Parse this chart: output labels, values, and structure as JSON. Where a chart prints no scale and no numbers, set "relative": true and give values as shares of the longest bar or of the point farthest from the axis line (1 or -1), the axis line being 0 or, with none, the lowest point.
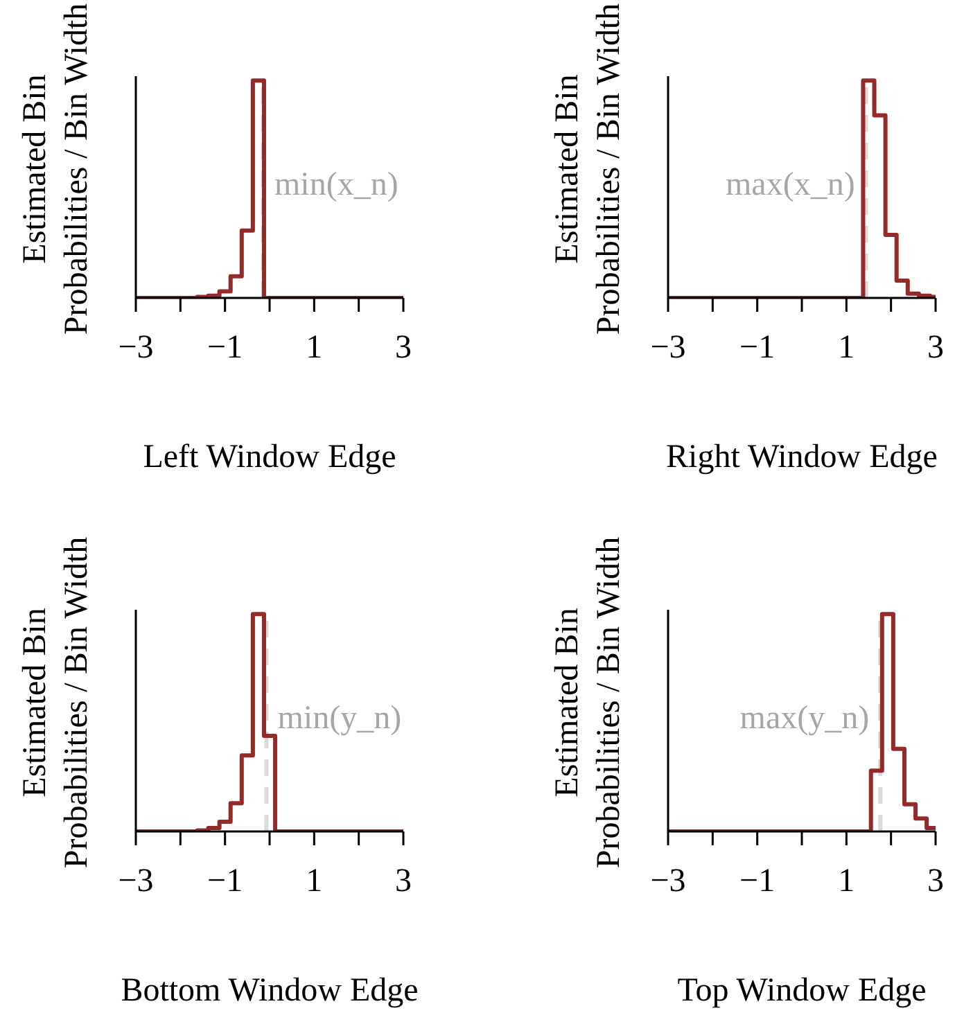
{
  "chart_data": [
    {
      "type": "step",
      "xlabel": "Left Window Edge",
      "ylabel": "Estimated Bin Probabilities / Bin Width",
      "relative": true,
      "color": "#952a2a",
      "x": [
        -3,
        -1.625,
        -1.375,
        -1.125,
        -0.875,
        -0.625,
        -0.375,
        -0.125,
        3
      ],
      "values": [
        0,
        0.005,
        0.01,
        0.03,
        0.1,
        0.31,
        1,
        0,
        0
      ],
      "xlim": [
        -3,
        3
      ],
      "xticks": [
        {
          "value": -3,
          "label": "−3"
        },
        {
          "value": -2,
          "label": null
        },
        {
          "value": -1,
          "label": "−1"
        },
        {
          "value": 0,
          "label": null
        },
        {
          "value": 1,
          "label": "1"
        },
        {
          "value": 2,
          "label": null
        },
        {
          "value": 3,
          "label": "3"
        }
      ],
      "ref_lines": [
        {
          "axis": "x",
          "value": -0.14,
          "label": "min(x_n)",
          "color": "#d9d9d9",
          "line_style": "dashed"
        }
      ]
    },
    {
      "type": "step",
      "xlabel": "Right Window Edge",
      "ylabel": "Estimated Bin Probabilities / Bin Width",
      "relative": true,
      "color": "#952a2a",
      "x": [
        -3,
        1.375,
        1.625,
        1.875,
        2.125,
        2.375,
        2.625,
        2.875,
        3
      ],
      "values": [
        0,
        1,
        0.84,
        0.29,
        0.08,
        0.02,
        0.01,
        0.005,
        0.005
      ],
      "xlim": [
        -3,
        3
      ],
      "xticks": [
        {
          "value": -3,
          "label": "−3"
        },
        {
          "value": -2,
          "label": null
        },
        {
          "value": -1,
          "label": "−1"
        },
        {
          "value": 0,
          "label": null
        },
        {
          "value": 1,
          "label": "1"
        },
        {
          "value": 2,
          "label": null
        },
        {
          "value": 3,
          "label": "3"
        }
      ],
      "ref_lines": [
        {
          "axis": "x",
          "value": 1.44,
          "label": "max(x_n)",
          "color": "#d9d9d9",
          "line_style": "dashed"
        }
      ]
    },
    {
      "type": "step",
      "xlabel": "Bottom Window Edge",
      "ylabel": "Estimated Bin Probabilities / Bin Width",
      "relative": true,
      "color": "#952a2a",
      "x": [
        -3,
        -1.625,
        -1.375,
        -1.125,
        -0.875,
        -0.625,
        -0.375,
        -0.125,
        0.125,
        3
      ],
      "values": [
        0,
        0.005,
        0.016,
        0.045,
        0.13,
        0.35,
        1,
        0.44,
        0,
        0
      ],
      "xlim": [
        -3,
        3
      ],
      "xticks": [
        {
          "value": -3,
          "label": "−3"
        },
        {
          "value": -2,
          "label": null
        },
        {
          "value": -1,
          "label": "−1"
        },
        {
          "value": 0,
          "label": null
        },
        {
          "value": 1,
          "label": "1"
        },
        {
          "value": 2,
          "label": null
        },
        {
          "value": 3,
          "label": "3"
        }
      ],
      "ref_lines": [
        {
          "axis": "x",
          "value": -0.07,
          "label": "min(y_n)",
          "color": "#d9d9d9",
          "line_style": "dashed"
        }
      ]
    },
    {
      "type": "step",
      "xlabel": "Top Window Edge",
      "ylabel": "Estimated Bin Probabilities / Bin Width",
      "relative": true,
      "color": "#952a2a",
      "x": [
        -3,
        1.55,
        1.8,
        2.05,
        2.3,
        2.55,
        2.8,
        3
      ],
      "values": [
        0,
        0.28,
        1,
        0.38,
        0.125,
        0.06,
        0.016,
        0.016
      ],
      "xlim": [
        -3,
        3
      ],
      "xticks": [
        {
          "value": -3,
          "label": "−3"
        },
        {
          "value": -2,
          "label": null
        },
        {
          "value": -1,
          "label": "−1"
        },
        {
          "value": 0,
          "label": null
        },
        {
          "value": 1,
          "label": "1"
        },
        {
          "value": 2,
          "label": null
        },
        {
          "value": 3,
          "label": "3"
        }
      ],
      "ref_lines": [
        {
          "axis": "x",
          "value": 1.76,
          "label": "max(y_n)",
          "color": "#d9d9d9",
          "line_style": "dashed"
        }
      ]
    }
  ]
}
